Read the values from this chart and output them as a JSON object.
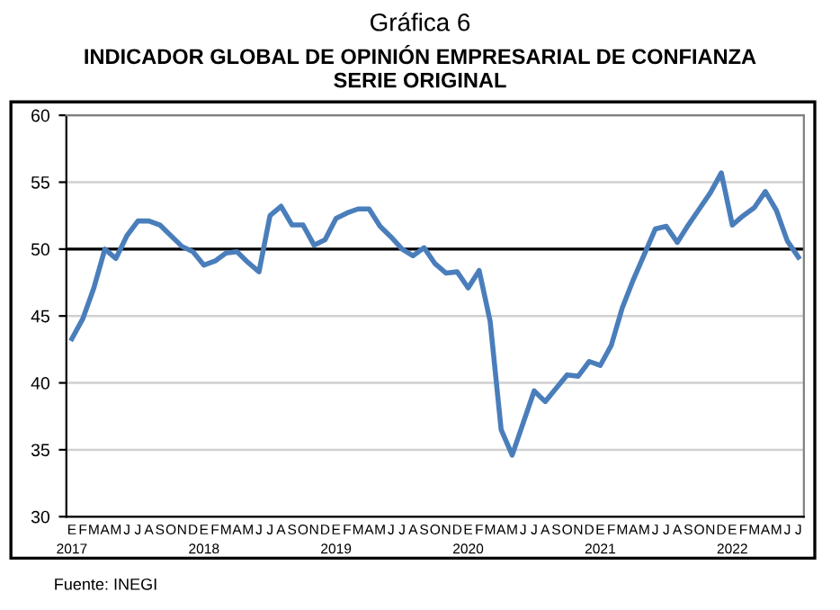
{
  "chart_data": {
    "type": "line",
    "title": "Gráfica 6",
    "subtitle": "INDICADOR GLOBAL DE OPINIÓN EMPRESARIAL DE CONFIANZA\nSERIE ORIGINAL",
    "categories": [
      "E\n2017",
      "F",
      "M",
      "A",
      "M",
      "J",
      "J",
      "A",
      "S",
      "O",
      "N",
      "D",
      "E\n2018",
      "F",
      "M",
      "A",
      "M",
      "J",
      "J",
      "A",
      "S",
      "O",
      "N",
      "D",
      "E\n2019",
      "F",
      "M",
      "A",
      "M",
      "J",
      "J",
      "A",
      "S",
      "O",
      "N",
      "D",
      "E\n2020",
      "F",
      "M",
      "A",
      "M",
      "J",
      "J",
      "A",
      "S",
      "O",
      "N",
      "D",
      "E\n2021",
      "F",
      "M",
      "A",
      "M",
      "J",
      "J",
      "A",
      "S",
      "O",
      "N",
      "D",
      "E\n2022",
      "F",
      "M",
      "A",
      "M",
      "J",
      "J"
    ],
    "series": [
      {
        "color": "#4a7ebb",
        "values": [
          43.3,
          44.8,
          47.1,
          50.0,
          49.3,
          51.0,
          52.1,
          52.1,
          51.8,
          51.0,
          50.2,
          49.8,
          48.8,
          49.1,
          49.7,
          49.8,
          49.0,
          48.3,
          52.5,
          53.2,
          51.8,
          51.8,
          50.3,
          50.7,
          52.3,
          52.7,
          53.0,
          53.0,
          51.7,
          50.9,
          50.0,
          49.5,
          50.1,
          48.9,
          48.2,
          48.3,
          47.1,
          48.4,
          44.6,
          36.5,
          34.6,
          37.0,
          39.4,
          38.6,
          39.6,
          40.6,
          40.5,
          41.6,
          41.3,
          42.8,
          45.6,
          47.7,
          49.6,
          51.5,
          51.7,
          50.5,
          51.8,
          53.0,
          54.2,
          55.7,
          51.8,
          52.5,
          53.1,
          54.3,
          52.9,
          50.6,
          49.4
        ]
      }
    ],
    "ylim": [
      30,
      60
    ],
    "yticks": [
      30,
      35,
      40,
      45,
      50,
      55,
      60
    ],
    "grid": "y",
    "ref_lines": [
      {
        "axis": "y",
        "value": 50,
        "color": "#000000"
      }
    ],
    "annotations": [
      "Fuente: INEGI"
    ]
  }
}
